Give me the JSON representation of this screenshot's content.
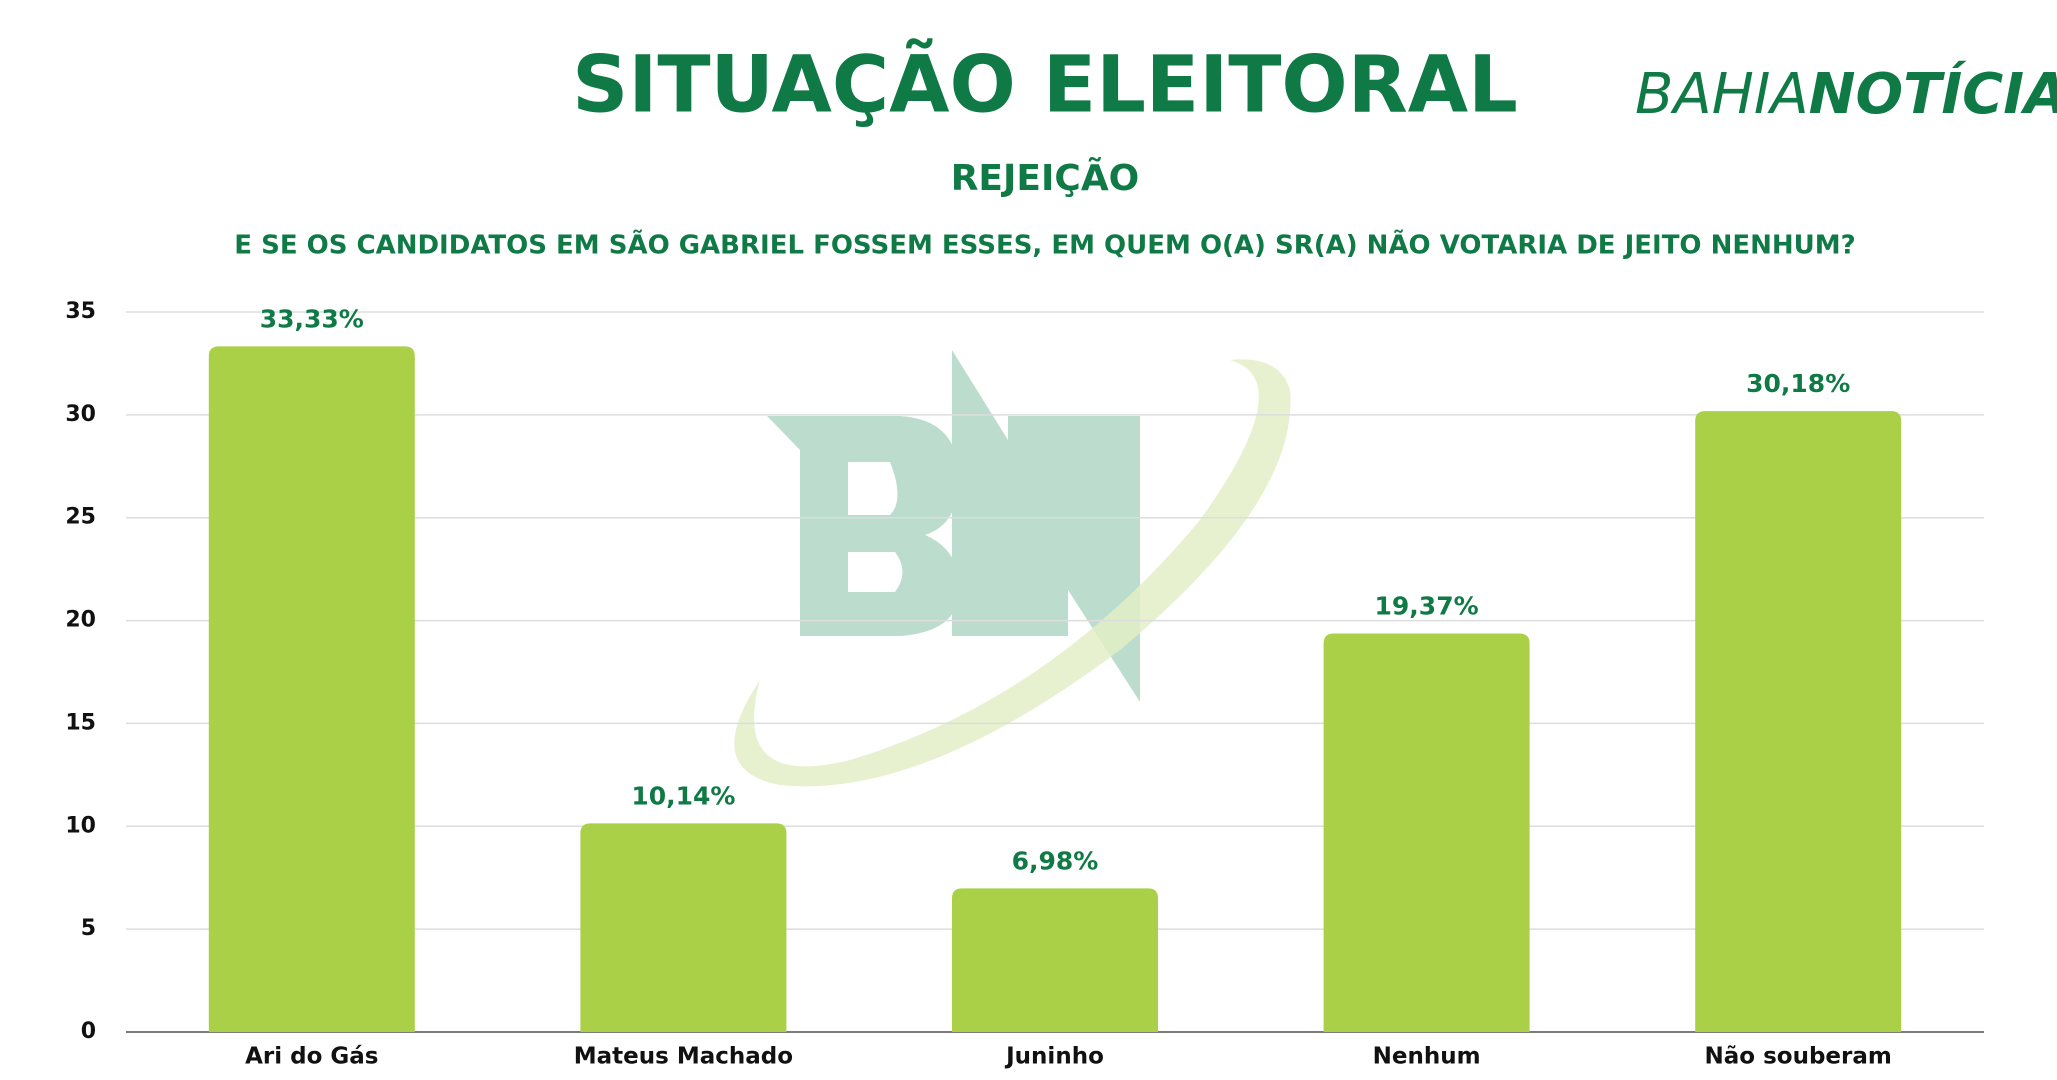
{
  "chart_data": {
    "type": "bar",
    "title": "SITUAÇÃO ELEITORAL",
    "subtitle": "REJEIÇÃO",
    "question": "E SE OS CANDIDATOS EM SÃO GABRIEL FOSSEM ESSES, EM QUEM O(A) SR(A) NÃO VOTARIA DE JEITO NENHUM?",
    "brand": {
      "light": "BAHIA",
      "bold": "NOTÍCIAS"
    },
    "categories": [
      "Ari do Gás",
      "Mateus Machado",
      "Juninho",
      "Nenhum",
      "Não souberam"
    ],
    "values": [
      33.33,
      10.14,
      6.98,
      19.37,
      30.18
    ],
    "value_labels": [
      "33,33%",
      "10,14%",
      "6,98%",
      "19,37%",
      "30,18%"
    ],
    "color": "#a9d046",
    "ylim": [
      0,
      35
    ],
    "yticks": [
      0,
      5,
      10,
      15,
      20,
      25,
      30,
      35
    ],
    "grid": true
  }
}
